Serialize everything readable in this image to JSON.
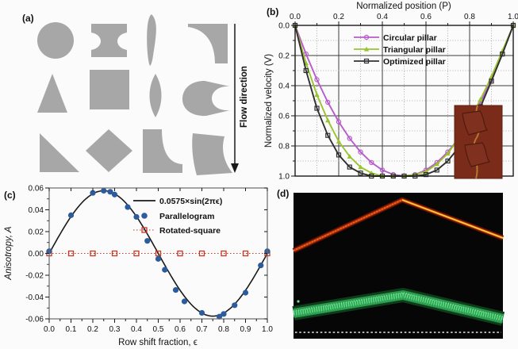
{
  "figure": {
    "background": "#fbfbfb"
  },
  "panels": {
    "a": {
      "label": "(a)",
      "flow_direction_label": "Flow direction",
      "shape_fill": "#a7a7a7",
      "shapes": [
        "circle",
        "i-beam",
        "curved-sliver",
        "concave-corner-square",
        "triangle",
        "square",
        "lens",
        "notched-bullet",
        "right-triangle",
        "diamond",
        "concave-l-bracket",
        "curved-fin"
      ]
    },
    "b": {
      "label": "(b)"
    },
    "c": {
      "label": "(c)"
    },
    "d": {
      "label": "(d)",
      "features": [
        "red-fluorescent-trace",
        "green-particle-lattice-band",
        "white-dashed-baseline"
      ]
    }
  },
  "chart_data": [
    {
      "panel": "b",
      "type": "line",
      "xlabel": "Normalized position (P)",
      "ylabel": "Normalized velocity (V)",
      "xlim": [
        0,
        1
      ],
      "ylim": [
        0,
        1
      ],
      "y_inverted": true,
      "x_major_ticks": [
        0.0,
        0.2,
        0.4,
        0.6,
        0.8,
        1.0
      ],
      "y_major_ticks": [
        0.0,
        0.2,
        0.4,
        0.6,
        0.8,
        1.0
      ],
      "minor_tick_step": 0.1,
      "grid": true,
      "legend_position": "upper-center",
      "inset": "brown micrograph of two optimized pillar cross-sections",
      "x": [
        0,
        0.05,
        0.1,
        0.15,
        0.2,
        0.25,
        0.3,
        0.35,
        0.4,
        0.45,
        0.5,
        0.55,
        0.6,
        0.65,
        0.7,
        0.75,
        0.8,
        0.85,
        0.9,
        0.95,
        1
      ],
      "series": [
        {
          "name": "Circular pillar",
          "color": "#b85ccb",
          "marker": "circle-open",
          "values": [
            0,
            0.19,
            0.36,
            0.51,
            0.64,
            0.75,
            0.84,
            0.91,
            0.96,
            0.99,
            1,
            0.99,
            0.96,
            0.91,
            0.84,
            0.75,
            0.64,
            0.51,
            0.36,
            0.19,
            0
          ]
        },
        {
          "name": "Triangular pillar",
          "color": "#99c42e",
          "marker": "triangle-filled",
          "values": [
            0,
            0.25,
            0.46,
            0.63,
            0.77,
            0.87,
            0.94,
            0.98,
            1,
            1,
            1,
            0.99,
            0.97,
            0.92,
            0.85,
            0.75,
            0.63,
            0.49,
            0.34,
            0.17,
            0
          ]
        },
        {
          "name": "Optimized pillar",
          "color": "#303030",
          "marker": "square-open",
          "values": [
            0,
            0.3,
            0.55,
            0.73,
            0.86,
            0.94,
            0.98,
            1,
            1,
            1,
            1,
            1,
            0.99,
            0.96,
            0.9,
            0.81,
            0.69,
            0.54,
            0.37,
            0.19,
            0
          ]
        }
      ]
    },
    {
      "panel": "c",
      "type": "scatter",
      "xlabel": "Row shift fraction, ϵ",
      "ylabel": "Anisotropy, A",
      "xlim": [
        0,
        1
      ],
      "ylim": [
        -0.06,
        0.06
      ],
      "x_major_ticks": [
        0.0,
        0.1,
        0.2,
        0.3,
        0.4,
        0.5,
        0.6,
        0.7,
        0.8,
        0.9,
        1.0
      ],
      "y_major_ticks": [
        0.06,
        0.04,
        0.02,
        0.0,
        -0.02,
        -0.04,
        -0.06
      ],
      "curve": {
        "label": "0.0575×sin(2πϵ)",
        "amplitude": 0.0575,
        "color": "#1a1a1a"
      },
      "series": [
        {
          "name": "Parallelogram",
          "color": "#2d5c9e",
          "marker": "circle-filled",
          "points": [
            [
              0,
              0.002
            ],
            [
              0.1,
              0.035
            ],
            [
              0.2,
              0.0555
            ],
            [
              0.25,
              0.0575
            ],
            [
              0.28,
              0.0565
            ],
            [
              0.3,
              0.054
            ],
            [
              0.36,
              0.0425
            ],
            [
              0.4,
              0.0335
            ],
            [
              0.45,
              0.0115
            ],
            [
              0.5,
              -0.005
            ],
            [
              0.53,
              -0.015
            ],
            [
              0.58,
              -0.0335
            ],
            [
              0.62,
              -0.044
            ],
            [
              0.7,
              -0.0545
            ],
            [
              0.78,
              -0.058
            ],
            [
              0.8,
              -0.0555
            ],
            [
              0.85,
              -0.0475
            ],
            [
              0.9,
              -0.036
            ],
            [
              0.97,
              -0.011
            ],
            [
              1,
              0.002
            ]
          ]
        },
        {
          "name": "Rotated-square",
          "color": "#c63726",
          "marker": "square-open",
          "linestyle": "dotted",
          "points": [
            [
              0,
              0
            ],
            [
              0.1,
              0
            ],
            [
              0.2,
              0
            ],
            [
              0.3,
              0
            ],
            [
              0.4,
              0
            ],
            [
              0.5,
              0
            ],
            [
              0.6,
              0
            ],
            [
              0.7,
              0
            ],
            [
              0.8,
              0
            ],
            [
              0.9,
              0
            ],
            [
              1,
              0
            ]
          ]
        }
      ]
    }
  ]
}
